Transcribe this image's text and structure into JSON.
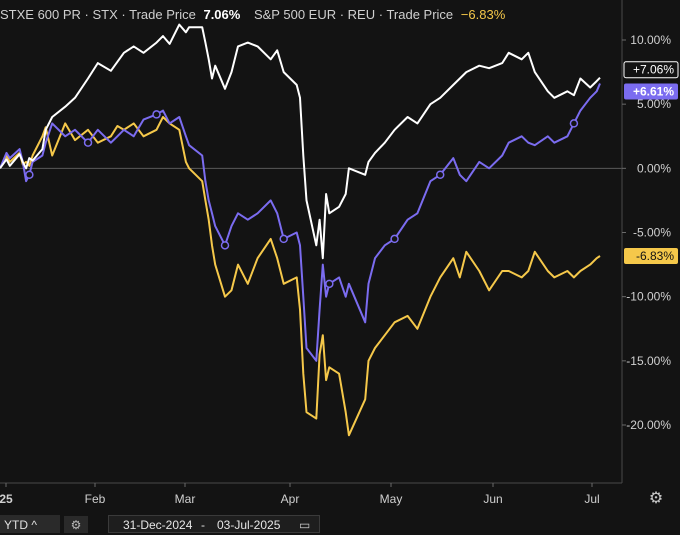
{
  "legend": {
    "s1_name": "STXE 600 PR",
    "s1_exchange": "STX",
    "s1_label": "Trade Price",
    "s1_value": "7.06%",
    "s2_name": "S&P 500 EUR",
    "s2_exchange": "REU",
    "s2_label": "Trade Price",
    "s2_value": "−6.83%"
  },
  "colors": {
    "background": "#131313",
    "white_series": "#ffffff",
    "purple_series": "#7b6cf0",
    "yellow_series": "#f5c84a",
    "grid": "#2a2a2a"
  },
  "controls": {
    "range_label": "YTD ^",
    "settings_icon": "gear-icon",
    "date_from": "31-Dec-2024",
    "date_sep": "-",
    "date_to": "03-Jul-2025",
    "calendar_icon": "calendar-icon"
  },
  "chart_data": {
    "type": "line",
    "x_axis_labels": [
      "25",
      "Feb",
      "Mar",
      "Apr",
      "May",
      "Jun",
      "Jul"
    ],
    "y_ticks": [
      "10.00%",
      "5.00%",
      "0.00%",
      "-5.00%",
      "-10.00%",
      "-15.00%",
      "-20.00%"
    ],
    "y_tick_values": [
      10,
      5,
      0,
      -5,
      -10,
      -15,
      -20
    ],
    "ylim": [
      -24,
      12.5
    ],
    "x_range": [
      "2024-12-31",
      "2025-07-03"
    ],
    "end_labels": [
      {
        "text": "+7.06%",
        "value": 7.06,
        "series": "white"
      },
      {
        "text": "+6.61%",
        "value": 6.61,
        "series": "purple"
      },
      {
        "text": "-6.83%",
        "value": -6.83,
        "series": "yellow"
      }
    ],
    "series": [
      {
        "id": "white",
        "name": "STXE 600 PR",
        "values": [
          [
            "2024-12-31",
            0.0
          ],
          [
            "2025-01-02",
            0.7
          ],
          [
            "2025-01-03",
            0.2
          ],
          [
            "2025-01-06",
            1.1
          ],
          [
            "2025-01-07",
            0.5
          ],
          [
            "2025-01-08",
            0.0
          ],
          [
            "2025-01-09",
            0.8
          ],
          [
            "2025-01-10",
            0.6
          ],
          [
            "2025-01-13",
            1.5
          ],
          [
            "2025-01-14",
            3.0
          ],
          [
            "2025-01-16",
            4.0
          ],
          [
            "2025-01-20",
            4.8
          ],
          [
            "2025-01-23",
            5.5
          ],
          [
            "2025-01-27",
            7.0
          ],
          [
            "2025-01-30",
            8.2
          ],
          [
            "2025-02-03",
            7.6
          ],
          [
            "2025-02-05",
            8.3
          ],
          [
            "2025-02-07",
            9.0
          ],
          [
            "2025-02-10",
            9.5
          ],
          [
            "2025-02-13",
            9.0
          ],
          [
            "2025-02-17",
            9.8
          ],
          [
            "2025-02-19",
            10.3
          ],
          [
            "2025-02-21",
            9.7
          ],
          [
            "2025-02-24",
            11.2
          ],
          [
            "2025-02-26",
            10.6
          ],
          [
            "2025-02-27",
            11.0
          ],
          [
            "2025-03-03",
            11.0
          ],
          [
            "2025-03-04",
            9.8
          ],
          [
            "2025-03-05",
            8.5
          ],
          [
            "2025-03-06",
            7.0
          ],
          [
            "2025-03-07",
            8.0
          ],
          [
            "2025-03-10",
            6.2
          ],
          [
            "2025-03-12",
            7.5
          ],
          [
            "2025-03-14",
            9.5
          ],
          [
            "2025-03-17",
            9.8
          ],
          [
            "2025-03-20",
            9.5
          ],
          [
            "2025-03-24",
            8.5
          ],
          [
            "2025-03-26",
            9.2
          ],
          [
            "2025-03-28",
            7.5
          ],
          [
            "2025-04-01",
            6.5
          ],
          [
            "2025-04-02",
            5.5
          ],
          [
            "2025-04-03",
            1.0
          ],
          [
            "2025-04-04",
            -2.5
          ],
          [
            "2025-04-07",
            -6.0
          ],
          [
            "2025-04-08",
            -4.0
          ],
          [
            "2025-04-09",
            -7.0
          ],
          [
            "2025-04-10",
            -2.0
          ],
          [
            "2025-04-11",
            -3.5
          ],
          [
            "2025-04-14",
            -3.0
          ],
          [
            "2025-04-16",
            -2.0
          ],
          [
            "2025-04-17",
            0.0
          ],
          [
            "2025-04-22",
            -0.5
          ],
          [
            "2025-04-23",
            0.5
          ],
          [
            "2025-04-25",
            1.2
          ],
          [
            "2025-04-28",
            2.0
          ],
          [
            "2025-05-01",
            3.0
          ],
          [
            "2025-05-05",
            4.0
          ],
          [
            "2025-05-08",
            3.5
          ],
          [
            "2025-05-12",
            5.0
          ],
          [
            "2025-05-15",
            5.5
          ],
          [
            "2025-05-19",
            6.5
          ],
          [
            "2025-05-21",
            7.0
          ],
          [
            "2025-05-23",
            7.5
          ],
          [
            "2025-05-27",
            8.0
          ],
          [
            "2025-05-30",
            7.8
          ],
          [
            "2025-06-03",
            8.2
          ],
          [
            "2025-06-05",
            9.0
          ],
          [
            "2025-06-09",
            8.5
          ],
          [
            "2025-06-11",
            9.0
          ],
          [
            "2025-06-13",
            7.5
          ],
          [
            "2025-06-17",
            6.0
          ],
          [
            "2025-06-19",
            5.5
          ],
          [
            "2025-06-23",
            6.0
          ],
          [
            "2025-06-25",
            5.7
          ],
          [
            "2025-06-27",
            7.0
          ],
          [
            "2025-06-30",
            6.3
          ],
          [
            "2025-07-02",
            6.8
          ],
          [
            "2025-07-03",
            7.06
          ]
        ]
      },
      {
        "id": "purple",
        "name": "",
        "values": [
          [
            "2024-12-31",
            0.0
          ],
          [
            "2025-01-02",
            1.2
          ],
          [
            "2025-01-03",
            0.8
          ],
          [
            "2025-01-06",
            1.5
          ],
          [
            "2025-01-07",
            0.5
          ],
          [
            "2025-01-08",
            -1.0
          ],
          [
            "2025-01-09",
            -0.5
          ],
          [
            "2025-01-10",
            0.5
          ],
          [
            "2025-01-13",
            1.0
          ],
          [
            "2025-01-14",
            2.0
          ],
          [
            "2025-01-16",
            3.5
          ],
          [
            "2025-01-20",
            2.5
          ],
          [
            "2025-01-23",
            3.0
          ],
          [
            "2025-01-27",
            2.0
          ],
          [
            "2025-01-30",
            3.0
          ],
          [
            "2025-02-03",
            2.0
          ],
          [
            "2025-02-05",
            2.5
          ],
          [
            "2025-02-07",
            3.0
          ],
          [
            "2025-02-10",
            2.5
          ],
          [
            "2025-02-13",
            3.8
          ],
          [
            "2025-02-17",
            4.2
          ],
          [
            "2025-02-19",
            4.5
          ],
          [
            "2025-02-21",
            3.5
          ],
          [
            "2025-02-24",
            4.0
          ],
          [
            "2025-02-26",
            2.5
          ],
          [
            "2025-02-27",
            1.8
          ],
          [
            "2025-03-03",
            1.0
          ],
          [
            "2025-03-04",
            -1.0
          ],
          [
            "2025-03-05",
            -2.5
          ],
          [
            "2025-03-06",
            -3.5
          ],
          [
            "2025-03-07",
            -4.5
          ],
          [
            "2025-03-10",
            -6.0
          ],
          [
            "2025-03-12",
            -4.5
          ],
          [
            "2025-03-14",
            -3.5
          ],
          [
            "2025-03-17",
            -4.0
          ],
          [
            "2025-03-20",
            -3.5
          ],
          [
            "2025-03-24",
            -2.5
          ],
          [
            "2025-03-26",
            -3.5
          ],
          [
            "2025-03-28",
            -5.5
          ],
          [
            "2025-04-01",
            -5.0
          ],
          [
            "2025-04-02",
            -6.0
          ],
          [
            "2025-04-03",
            -10.0
          ],
          [
            "2025-04-04",
            -14.0
          ],
          [
            "2025-04-07",
            -15.0
          ],
          [
            "2025-04-08",
            -11.0
          ],
          [
            "2025-04-09",
            -7.5
          ],
          [
            "2025-04-10",
            -10.0
          ],
          [
            "2025-04-11",
            -9.0
          ],
          [
            "2025-04-14",
            -8.5
          ],
          [
            "2025-04-16",
            -10.0
          ],
          [
            "2025-04-17",
            -9.0
          ],
          [
            "2025-04-22",
            -12.0
          ],
          [
            "2025-04-23",
            -9.0
          ],
          [
            "2025-04-25",
            -7.0
          ],
          [
            "2025-04-28",
            -6.0
          ],
          [
            "2025-05-01",
            -5.5
          ],
          [
            "2025-05-05",
            -4.0
          ],
          [
            "2025-05-08",
            -3.5
          ],
          [
            "2025-05-12",
            -1.0
          ],
          [
            "2025-05-15",
            -0.5
          ],
          [
            "2025-05-19",
            0.8
          ],
          [
            "2025-05-21",
            -0.5
          ],
          [
            "2025-05-23",
            -1.0
          ],
          [
            "2025-05-27",
            0.5
          ],
          [
            "2025-05-30",
            0.0
          ],
          [
            "2025-06-03",
            1.0
          ],
          [
            "2025-06-05",
            2.0
          ],
          [
            "2025-06-09",
            2.5
          ],
          [
            "2025-06-11",
            2.0
          ],
          [
            "2025-06-13",
            1.8
          ],
          [
            "2025-06-17",
            2.5
          ],
          [
            "2025-06-19",
            2.0
          ],
          [
            "2025-06-23",
            2.5
          ],
          [
            "2025-06-25",
            3.5
          ],
          [
            "2025-06-27",
            4.5
          ],
          [
            "2025-06-30",
            5.5
          ],
          [
            "2025-07-02",
            6.0
          ],
          [
            "2025-07-03",
            6.61
          ]
        ]
      },
      {
        "id": "yellow",
        "name": "S&P 500 EUR",
        "values": [
          [
            "2024-12-31",
            0.0
          ],
          [
            "2025-01-02",
            1.0
          ],
          [
            "2025-01-03",
            0.5
          ],
          [
            "2025-01-06",
            1.2
          ],
          [
            "2025-01-07",
            0.3
          ],
          [
            "2025-01-08",
            0.5
          ],
          [
            "2025-01-09",
            0.2
          ],
          [
            "2025-01-10",
            1.0
          ],
          [
            "2025-01-13",
            2.5
          ],
          [
            "2025-01-14",
            3.2
          ],
          [
            "2025-01-16",
            1.0
          ],
          [
            "2025-01-20",
            3.5
          ],
          [
            "2025-01-23",
            2.2
          ],
          [
            "2025-01-27",
            3.0
          ],
          [
            "2025-01-30",
            2.0
          ],
          [
            "2025-02-03",
            2.5
          ],
          [
            "2025-02-05",
            3.3
          ],
          [
            "2025-02-07",
            3.0
          ],
          [
            "2025-02-10",
            3.5
          ],
          [
            "2025-02-13",
            2.5
          ],
          [
            "2025-02-17",
            3.0
          ],
          [
            "2025-02-19",
            4.0
          ],
          [
            "2025-02-21",
            3.5
          ],
          [
            "2025-02-24",
            3.0
          ],
          [
            "2025-02-26",
            0.5
          ],
          [
            "2025-02-27",
            0.0
          ],
          [
            "2025-03-03",
            -1.0
          ],
          [
            "2025-03-04",
            -2.5
          ],
          [
            "2025-03-05",
            -4.0
          ],
          [
            "2025-03-06",
            -6.0
          ],
          [
            "2025-03-07",
            -7.5
          ],
          [
            "2025-03-10",
            -10.0
          ],
          [
            "2025-03-12",
            -9.5
          ],
          [
            "2025-03-14",
            -7.5
          ],
          [
            "2025-03-17",
            -9.0
          ],
          [
            "2025-03-20",
            -7.0
          ],
          [
            "2025-03-24",
            -5.5
          ],
          [
            "2025-03-26",
            -7.0
          ],
          [
            "2025-03-28",
            -9.0
          ],
          [
            "2025-04-01",
            -8.5
          ],
          [
            "2025-04-02",
            -11.0
          ],
          [
            "2025-04-03",
            -16.0
          ],
          [
            "2025-04-04",
            -19.0
          ],
          [
            "2025-04-07",
            -19.5
          ],
          [
            "2025-04-08",
            -14.5
          ],
          [
            "2025-04-09",
            -13.0
          ],
          [
            "2025-04-10",
            -16.5
          ],
          [
            "2025-04-11",
            -15.5
          ],
          [
            "2025-04-14",
            -16.0
          ],
          [
            "2025-04-16",
            -19.0
          ],
          [
            "2025-04-17",
            -20.8
          ],
          [
            "2025-04-22",
            -18.0
          ],
          [
            "2025-04-23",
            -15.0
          ],
          [
            "2025-04-25",
            -14.0
          ],
          [
            "2025-04-28",
            -13.0
          ],
          [
            "2025-05-01",
            -12.0
          ],
          [
            "2025-05-05",
            -11.5
          ],
          [
            "2025-05-08",
            -12.5
          ],
          [
            "2025-05-12",
            -10.0
          ],
          [
            "2025-05-15",
            -8.5
          ],
          [
            "2025-05-19",
            -7.0
          ],
          [
            "2025-05-21",
            -8.5
          ],
          [
            "2025-05-23",
            -6.5
          ],
          [
            "2025-05-27",
            -8.0
          ],
          [
            "2025-05-30",
            -9.5
          ],
          [
            "2025-06-03",
            -8.0
          ],
          [
            "2025-06-05",
            -8.0
          ],
          [
            "2025-06-09",
            -8.5
          ],
          [
            "2025-06-11",
            -8.0
          ],
          [
            "2025-06-13",
            -6.5
          ],
          [
            "2025-06-17",
            -8.0
          ],
          [
            "2025-06-19",
            -8.5
          ],
          [
            "2025-06-23",
            -8.0
          ],
          [
            "2025-06-25",
            -8.5
          ],
          [
            "2025-06-27",
            -8.0
          ],
          [
            "2025-06-30",
            -7.5
          ],
          [
            "2025-07-02",
            -7.0
          ],
          [
            "2025-07-03",
            -6.83
          ]
        ]
      }
    ],
    "markers": {
      "series": "purple",
      "dates": [
        "2025-01-09",
        "2025-01-27",
        "2025-02-17",
        "2025-03-10",
        "2025-03-28",
        "2025-04-11",
        "2025-05-01",
        "2025-05-15",
        "2025-06-25"
      ]
    }
  }
}
